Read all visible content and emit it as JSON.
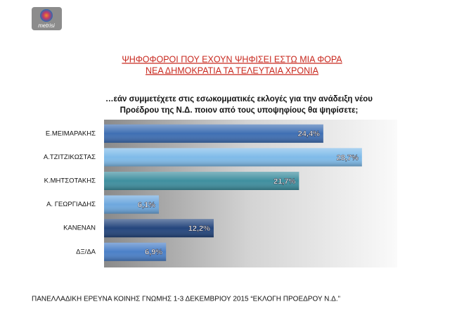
{
  "logo": "metrisi",
  "chart_data": {
    "type": "barh",
    "title": [
      "ΨΗΦΟΦΟΡΟΙ ΠΟΥ ΕΧΟΥΝ ΨΗΦΙΣΕΙ ΕΣΤΩ ΜΙΑ ΦΟΡΑ",
      "ΝΕΑ ΔΗΜΟΚΡΑΤΙΑ ΤΑ ΤΕΛΕΥΤΑΙΑ ΧΡΟΝΙΑ"
    ],
    "subtitle": [
      "…εάν συμμετέχετε στις εσωκομματικές εκλογές για την ανάδειξη νέου",
      "Προέδρου της Ν.Δ. ποιον από τους υποψηφίους θα ψηφίσετε;"
    ],
    "categories": [
      "Ε.ΜΕΙΜΑΡΑΚΗΣ",
      "Α.ΤΖΙΤΖΙΚΩΣΤΑΣ",
      "Κ.ΜΗΤΣΟΤΑΚΗΣ",
      "Α. ΓΕΩΡΓΙΑΔΗΣ",
      "ΚΑΝΕΝΑΝ",
      "ΔΞ/ΔΑ"
    ],
    "values": [
      24.4,
      28.7,
      21.7,
      6.1,
      12.2,
      6.9
    ],
    "value_labels": [
      "24,4%",
      "28,7%",
      "21,7%",
      "6,1%",
      "12,2%",
      "6,9%"
    ],
    "colors": [
      "#3f6fb3",
      "#7fbbe9",
      "#3f8f9f",
      "#6ea8de",
      "#24467d",
      "#4b80c8"
    ],
    "xlim": [
      0,
      32
    ],
    "footnote": "ΠΑΝΕΛΛΑΔΙΚΗ ΕΡΕΥΝΑ ΚΟΙΝΗΣ ΓΝΩΜΗΣ 1-3 ΔΕΚΕΜΒΡΙΟΥ  2015 “ΕΚΛΟΓΗ ΠΡΟΕΔΡΟΥ Ν.Δ.”"
  }
}
